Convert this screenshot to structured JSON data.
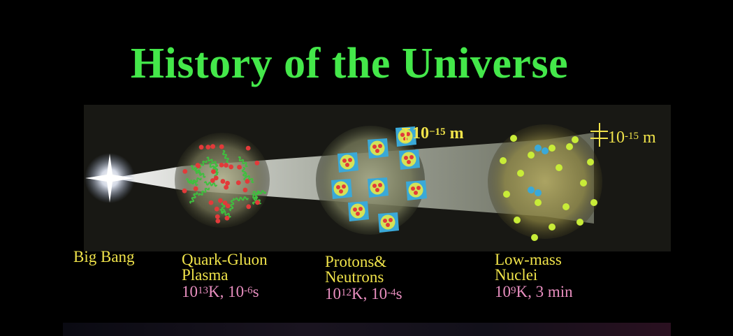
{
  "title": "History of the Universe",
  "colors": {
    "title": "#44e84a",
    "label": "#f0e34a",
    "condition": "#e98fc0",
    "quark": "#e23a3a",
    "gluon": "#3fbf3f",
    "nucleon_shell": "#3aa9d8",
    "nucleon_core": "#e6e84a",
    "nucleus": "#c8ec38"
  },
  "stages": [
    {
      "name": "Big Bang"
    },
    {
      "name_line1": "Quark-Gluon",
      "name_line2": "Plasma",
      "temp_base": "10",
      "temp_exp": "13",
      "temp_unit": "K, ",
      "time_base": "10",
      "time_exp": "-6",
      "time_unit": "s"
    },
    {
      "name_line1": "Protons&",
      "name_line2": "Neutrons",
      "temp_base": "10",
      "temp_exp": "12",
      "temp_unit": "K, ",
      "time_base": "10",
      "time_exp": "-4",
      "time_unit": "s"
    },
    {
      "name_line1": "Low-mass",
      "name_line2": "Nuclei",
      "temp_base": "10",
      "temp_exp": "9",
      "temp_unit": "K, 3 min"
    }
  ],
  "scales": [
    {
      "base": "10",
      "exp": "−15",
      "unit": " m"
    },
    {
      "base": "10",
      "exp": "-15",
      "unit": " m"
    }
  ]
}
